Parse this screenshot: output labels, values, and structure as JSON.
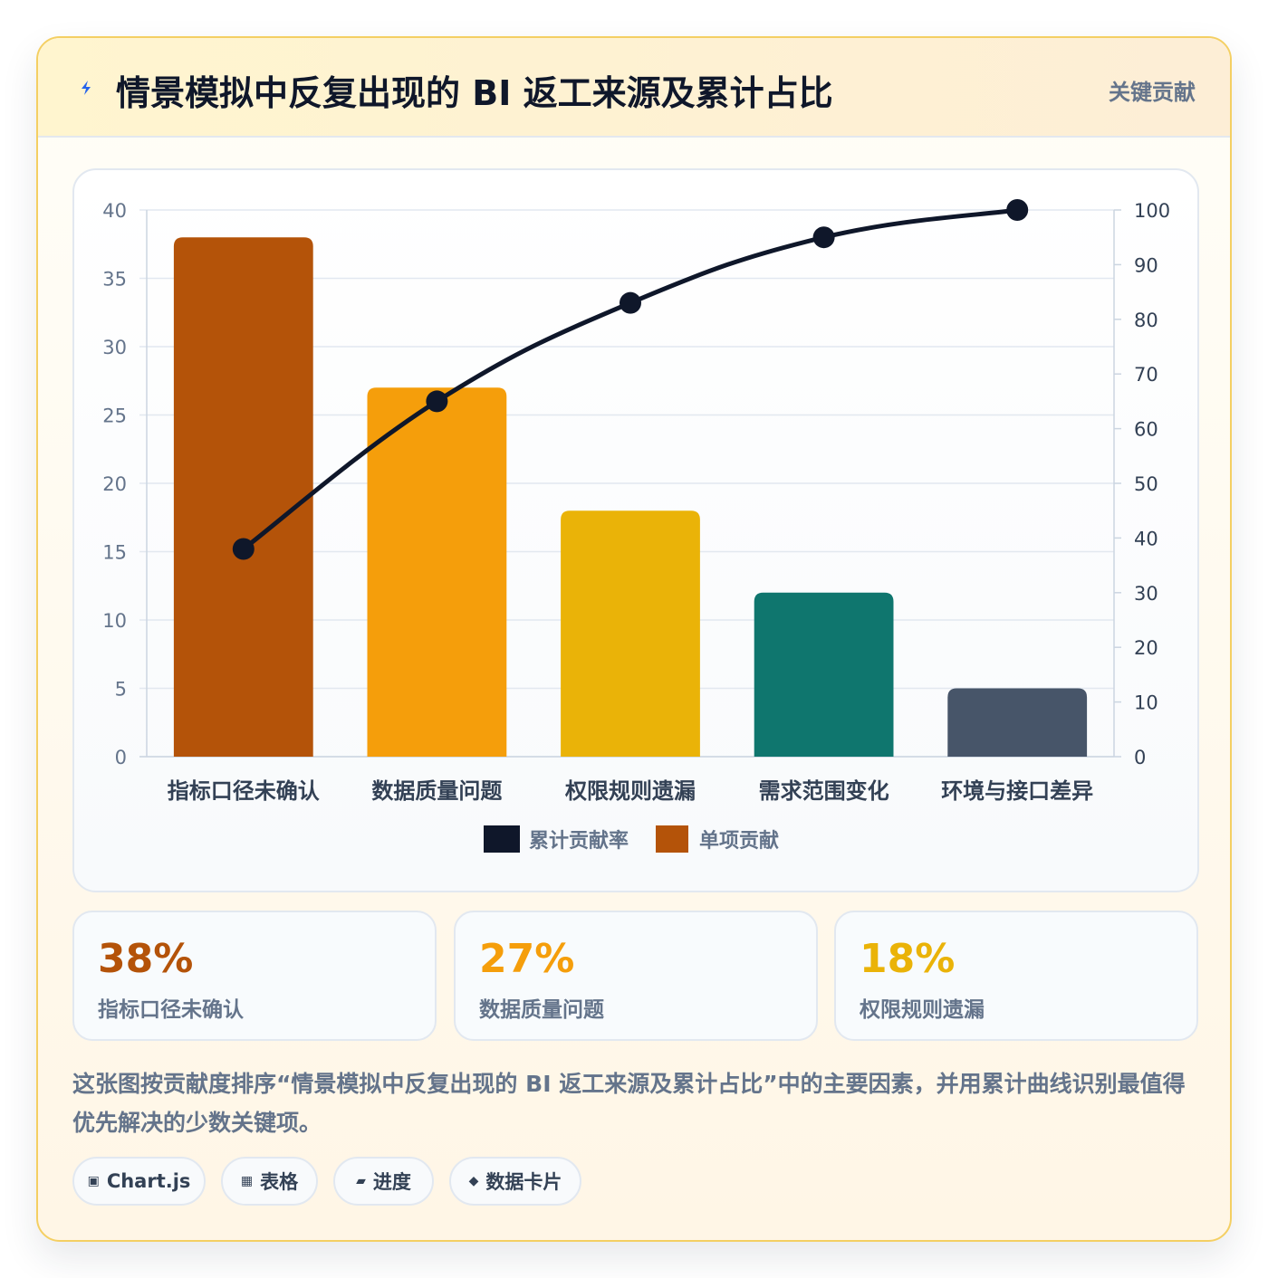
{
  "header": {
    "icon": "lightning-icon",
    "title": "情景模拟中反复出现的 BI 返工来源及累计占比",
    "badge": "关键贡献"
  },
  "chart_data": {
    "type": "bar",
    "categories": [
      "指标口径未确认",
      "数据质量问题",
      "权限规则遗漏",
      "需求范围变化",
      "环境与接口差异"
    ],
    "series": [
      {
        "name": "累计贡献率",
        "type": "line",
        "axis": "right",
        "values": [
          38,
          65,
          83,
          95,
          100
        ],
        "color": "#0f172a"
      },
      {
        "name": "单项贡献",
        "type": "bar",
        "axis": "left",
        "values": [
          38,
          27,
          18,
          12,
          5
        ],
        "colors": [
          "#b45309",
          "#f59e0b",
          "#eab308",
          "#0f766e",
          "#475569"
        ]
      }
    ],
    "y_left": {
      "min": 0,
      "max": 40,
      "ticks": [
        "0",
        "5",
        "10",
        "15",
        "20",
        "25",
        "30",
        "35",
        "40"
      ]
    },
    "y_right": {
      "min": 0,
      "max": 100,
      "ticks": [
        "0",
        "10",
        "20",
        "30",
        "40",
        "50",
        "60",
        "70",
        "80",
        "90",
        "100"
      ]
    },
    "grid": true,
    "legend": "bottom"
  },
  "stats": [
    {
      "value": "38%",
      "label": "指标口径未确认",
      "color": "#b45309"
    },
    {
      "value": "27%",
      "label": "数据质量问题",
      "color": "#f59e0b"
    },
    {
      "value": "18%",
      "label": "权限规则遗漏",
      "color": "#eab308"
    }
  ],
  "description": "这张图按贡献度排序“情景模拟中反复出现的 BI 返工来源及累计占比”中的主要因素，并用累计曲线识别最值得优先解决的少数关键项。",
  "pills": [
    {
      "icon": "▣",
      "label": "Chart.js"
    },
    {
      "icon": "▦",
      "label": "表格"
    },
    {
      "icon": "▰",
      "label": "进度"
    },
    {
      "icon": "◆",
      "label": "数据卡片"
    }
  ]
}
